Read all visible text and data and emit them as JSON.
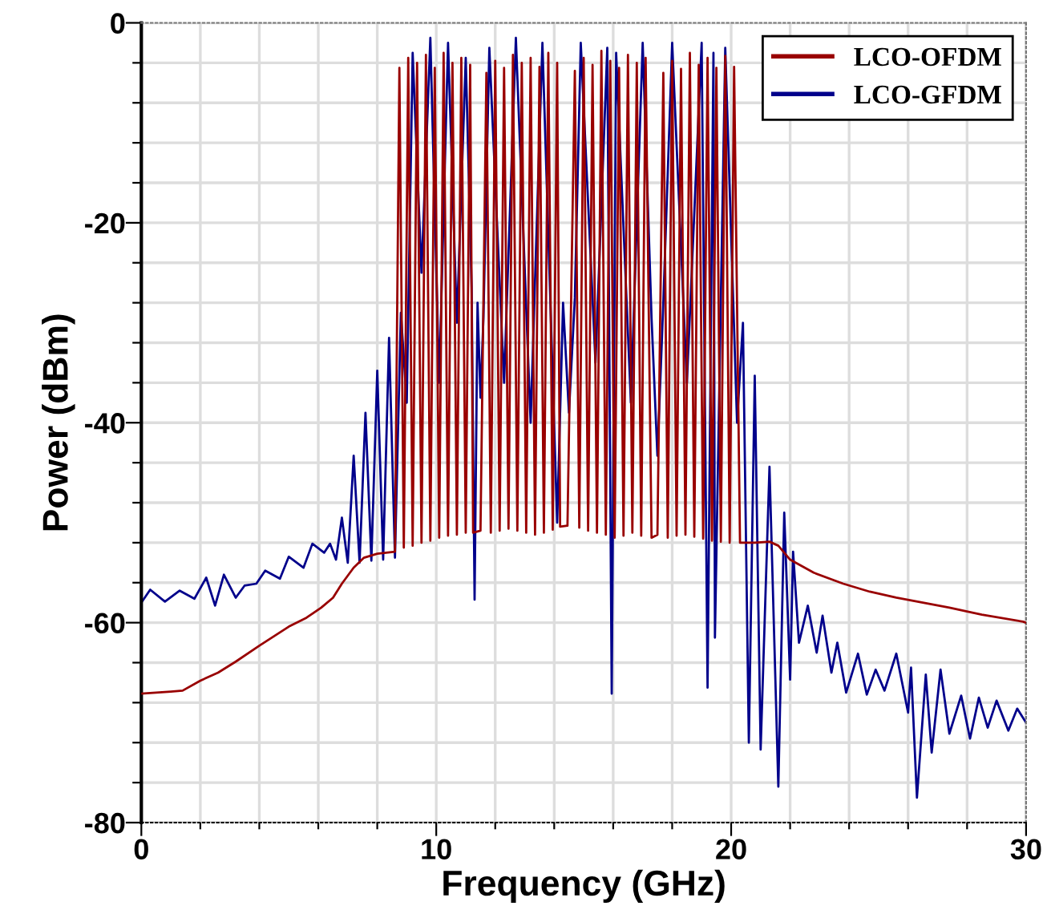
{
  "chart_data": {
    "type": "line",
    "xlabel": "Frequency (GHz)",
    "ylabel": "Power (dBm)",
    "xlim": [
      0,
      30
    ],
    "ylim": [
      -80,
      0
    ],
    "xticks": [
      0,
      {
        "value": 2,
        "label": null
      },
      {
        "value": 4,
        "label": null
      },
      {
        "value": 6,
        "label": null
      },
      {
        "value": 8,
        "label": null
      },
      10,
      {
        "value": 12,
        "label": null
      },
      {
        "value": 14,
        "label": null
      },
      {
        "value": 16,
        "label": null
      },
      {
        "value": 18,
        "label": null
      },
      20,
      {
        "value": 22,
        "label": null
      },
      {
        "value": 24,
        "label": null
      },
      {
        "value": 26,
        "label": null
      },
      {
        "value": 28,
        "label": null
      },
      30
    ],
    "yticks": [
      -80,
      {
        "value": -76,
        "label": null
      },
      {
        "value": -72,
        "label": null
      },
      {
        "value": -68,
        "label": null
      },
      {
        "value": -64,
        "label": null
      },
      -60,
      {
        "value": -56,
        "label": null
      },
      {
        "value": -52,
        "label": null
      },
      {
        "value": -48,
        "label": null
      },
      {
        "value": -44,
        "label": null
      },
      -40,
      {
        "value": -36,
        "label": null
      },
      {
        "value": -32,
        "label": null
      },
      {
        "value": -28,
        "label": null
      },
      {
        "value": -24,
        "label": null
      },
      -20,
      {
        "value": -16,
        "label": null
      },
      {
        "value": -12,
        "label": null
      },
      {
        "value": -8,
        "label": null
      },
      {
        "value": -4,
        "label": null
      },
      0
    ],
    "grid": true,
    "legend": "top right",
    "line_style": "solid",
    "marker": "none",
    "series": [
      {
        "name": "LCO-GFDM",
        "color": "#00008b",
        "x": [
          0,
          0.3,
          0.8,
          1.3,
          1.8,
          2.2,
          2.5,
          2.8,
          3.2,
          3.5,
          3.9,
          4.2,
          4.7,
          5.0,
          5.5,
          5.8,
          6.2,
          6.4,
          6.6,
          6.8,
          7.0,
          7.2,
          7.4,
          7.6,
          7.8,
          8.0,
          8.2,
          8.4,
          8.6,
          8.8,
          9.0,
          9.2,
          9.5,
          9.8,
          10.1,
          10.4,
          10.7,
          11.0,
          11.2,
          11.3,
          11.4,
          11.5,
          11.6,
          11.8,
          12.3,
          12.7,
          13.2,
          13.6,
          14.1,
          14.3,
          14.5,
          14.7,
          14.9,
          15.4,
          15.8,
          15.95,
          16.1,
          16.6,
          17.0,
          17.3,
          17.5,
          17.7,
          18.0,
          18.5,
          19.0,
          19.2,
          19.4,
          19.45,
          19.8,
          20.2,
          20.4,
          20.6,
          20.8,
          21.0,
          21.3,
          21.6,
          21.8,
          22.0,
          22.1,
          22.3,
          22.6,
          22.9,
          23.1,
          23.4,
          23.6,
          23.9,
          24.3,
          24.6,
          24.9,
          25.2,
          25.6,
          26.0,
          26.1,
          26.3,
          26.6,
          26.8,
          27.1,
          27.4,
          27.8,
          28.1,
          28.4,
          28.7,
          29.0,
          29.4,
          29.7,
          30.0
        ],
        "values": [
          -58.0,
          -56.7,
          -57.9,
          -56.8,
          -57.6,
          -55.5,
          -58.3,
          -55.2,
          -57.5,
          -56.3,
          -56.1,
          -54.8,
          -55.6,
          -53.4,
          -54.5,
          -52.1,
          -53.0,
          -52.1,
          -53.7,
          -49.5,
          -54.0,
          -43.3,
          -54.0,
          -39.0,
          -53.8,
          -34.8,
          -53.7,
          -31.5,
          -53.5,
          -29.0,
          -38.0,
          -3.0,
          -25.0,
          -1.5,
          -36.0,
          -2.0,
          -30.0,
          -3.5,
          -26.5,
          -57.7,
          -28.0,
          -37.5,
          -29.5,
          -2.5,
          -36.0,
          -1.5,
          -40.0,
          -2.0,
          -50.0,
          -28.0,
          -39.0,
          -27.5,
          -2.0,
          -34.0,
          -2.5,
          -67.1,
          -3.0,
          -38.0,
          -2.0,
          -29.5,
          -43.3,
          -28.0,
          -2.0,
          -36.0,
          -2.0,
          -66.5,
          -3.0,
          -61.5,
          -2.5,
          -40.0,
          -30.0,
          -72.0,
          -35.3,
          -72.7,
          -44.4,
          -76.4,
          -49.0,
          -65.7,
          -52.9,
          -62.0,
          -58.3,
          -63.0,
          -59.3,
          -65.0,
          -62.0,
          -67.0,
          -63.1,
          -67.2,
          -64.7,
          -66.8,
          -63.1,
          -69.0,
          -64.5,
          -77.5,
          -65.2,
          -73.0,
          -64.7,
          -71.1,
          -67.3,
          -71.6,
          -67.5,
          -70.5,
          -67.8,
          -70.8,
          -68.6,
          -70.0
        ]
      },
      {
        "name": "LCO-OFDM",
        "color": "#990000",
        "x": [
          0,
          0.5,
          1.0,
          1.4,
          2.0,
          2.6,
          3.2,
          4.0,
          5.0,
          5.6,
          6.1,
          6.5,
          6.8,
          7.2,
          7.55,
          8.0,
          8.6,
          8.75,
          8.9,
          9.05,
          9.2,
          9.35,
          9.5,
          9.65,
          9.8,
          9.95,
          10.1,
          10.25,
          10.4,
          10.55,
          10.7,
          10.85,
          11.0,
          11.15,
          11.25,
          11.5,
          11.7,
          11.85,
          12.0,
          12.15,
          12.3,
          12.45,
          12.6,
          12.75,
          12.9,
          13.05,
          13.2,
          13.35,
          13.5,
          13.65,
          13.8,
          13.95,
          14.1,
          14.2,
          14.45,
          14.7,
          14.85,
          15.0,
          15.15,
          15.3,
          15.45,
          15.6,
          15.75,
          15.9,
          16.05,
          16.2,
          16.35,
          16.5,
          16.65,
          16.8,
          16.95,
          17.1,
          17.3,
          17.5,
          17.7,
          17.85,
          18.0,
          18.15,
          18.3,
          18.45,
          18.6,
          18.75,
          18.9,
          19.05,
          19.2,
          19.35,
          19.5,
          19.65,
          19.8,
          19.95,
          20.1,
          20.3,
          20.8,
          21.3,
          21.6,
          22.0,
          22.8,
          23.8,
          24.7,
          25.6,
          26.5,
          27.4,
          28.5,
          29.9,
          30.0
        ],
        "values": [
          -67.1,
          -67.0,
          -66.9,
          -66.8,
          -65.8,
          -65.0,
          -63.9,
          -62.3,
          -60.4,
          -59.5,
          -58.5,
          -57.5,
          -56.1,
          -54.5,
          -53.5,
          -53.1,
          -52.9,
          -4.5,
          -52.5,
          -3.5,
          -52.3,
          -4.0,
          -52.0,
          -3.2,
          -51.8,
          -4.5,
          -51.5,
          -3.0,
          -51.3,
          -4.0,
          -51.2,
          -3.5,
          -51.0,
          -4.2,
          -51.0,
          -50.8,
          -5.0,
          -51.0,
          -3.8,
          -50.8,
          -4.5,
          -50.6,
          -3.2,
          -50.8,
          -4.0,
          -51.0,
          -3.5,
          -51.2,
          -4.4,
          -51.0,
          -3.0,
          -50.7,
          -4.0,
          -50.4,
          -50.3,
          -4.8,
          -50.5,
          -3.5,
          -50.8,
          -4.2,
          -51.0,
          -2.8,
          -51.2,
          -3.8,
          -51.5,
          -4.5,
          -51.3,
          -3.2,
          -51.0,
          -4.0,
          -51.3,
          -3.5,
          -51.5,
          -51.2,
          -5.0,
          -51.5,
          -3.8,
          -51.3,
          -4.6,
          -51.2,
          -3.0,
          -51.4,
          -4.2,
          -51.6,
          -3.5,
          -51.8,
          -4.5,
          -51.9,
          -3.3,
          -52.0,
          -4.4,
          -52.0,
          -52.0,
          -51.9,
          -52.3,
          -53.7,
          -55.0,
          -56.1,
          -56.9,
          -57.5,
          -58.0,
          -58.5,
          -59.2,
          -59.9,
          -60.0
        ]
      }
    ]
  }
}
